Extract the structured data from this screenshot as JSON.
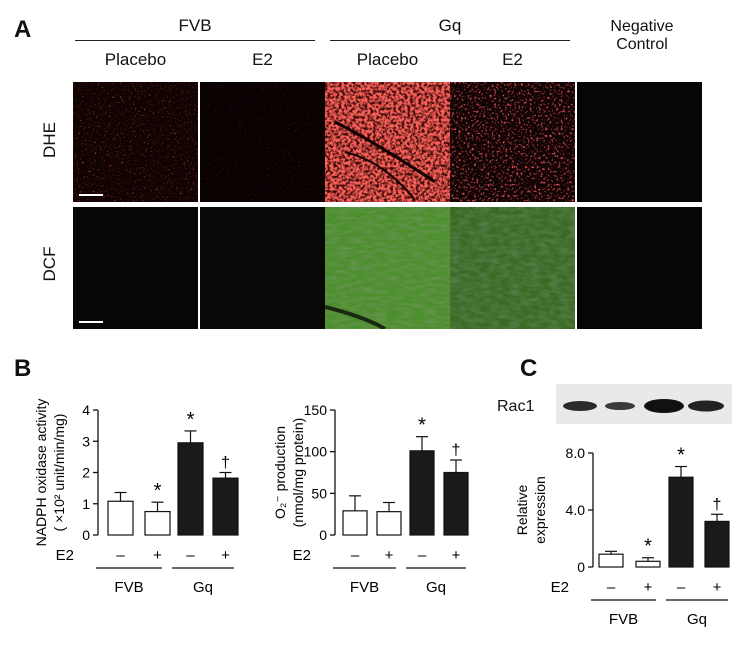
{
  "panel_a": {
    "letter": "A",
    "group_fvb": "FVB",
    "group_gq": "Gq",
    "negative_control": [
      "Negative",
      "Control"
    ],
    "col_placebo_1": "Placebo",
    "col_e2_1": "E2",
    "col_placebo_2": "Placebo",
    "col_e2_2": "E2",
    "row_dhe": "DHE",
    "row_dcf": "DCF"
  },
  "panel_b_letter": "B",
  "panel_c_letter": "C",
  "western_label": "Rac1",
  "colors": {
    "open_bar": "#ffffff",
    "filled_bar": "#1a1a1a",
    "dhe_signal": "#e02020",
    "dcf_signal": "#5cc23a"
  },
  "chart_data": [
    {
      "type": "bar",
      "panel": "B-left",
      "ylabel": [
        "NADPH oxidase activity",
        "( ×10² unit/min/mg)"
      ],
      "ylim": [
        0,
        4
      ],
      "yticks": [
        "0",
        "1",
        "2",
        "3",
        "4"
      ],
      "e2_label": "E2",
      "e2_signs": [
        "–",
        "+",
        "–",
        "+"
      ],
      "groups": [
        "FVB",
        "Gq"
      ],
      "values": [
        1.08,
        0.75,
        2.95,
        1.82
      ],
      "errors": [
        0.28,
        0.3,
        0.38,
        0.18
      ],
      "fill": [
        "open",
        "open",
        "filled",
        "filled"
      ],
      "marks": [
        "",
        "*",
        "*",
        "†"
      ]
    },
    {
      "type": "bar",
      "panel": "B-right",
      "ylabel": [
        "O₂⁻ production",
        "(nmol/mg protein)"
      ],
      "ylim": [
        0,
        150
      ],
      "yticks": [
        "0",
        "50",
        "100",
        "150"
      ],
      "e2_label": "E2",
      "e2_signs": [
        "–",
        "+",
        "–",
        "+"
      ],
      "groups": [
        "FVB",
        "Gq"
      ],
      "values": [
        29,
        28,
        101,
        75
      ],
      "errors": [
        18,
        11,
        17,
        15
      ],
      "fill": [
        "open",
        "open",
        "filled",
        "filled"
      ],
      "marks": [
        "",
        "",
        "*",
        "†"
      ]
    },
    {
      "type": "bar",
      "panel": "C",
      "ylabel": [
        "Relative",
        "expression"
      ],
      "ylim": [
        0,
        8
      ],
      "yticks": [
        "0",
        "4.0",
        "8.0"
      ],
      "e2_label": "E2",
      "e2_signs": [
        "–",
        "+",
        "–",
        "+"
      ],
      "groups": [
        "FVB",
        "Gq"
      ],
      "values": [
        0.9,
        0.4,
        6.3,
        3.2
      ],
      "errors": [
        0.2,
        0.25,
        0.75,
        0.5
      ],
      "fill": [
        "open",
        "open",
        "filled",
        "filled"
      ],
      "marks": [
        "",
        "*",
        "*",
        "†"
      ]
    }
  ]
}
